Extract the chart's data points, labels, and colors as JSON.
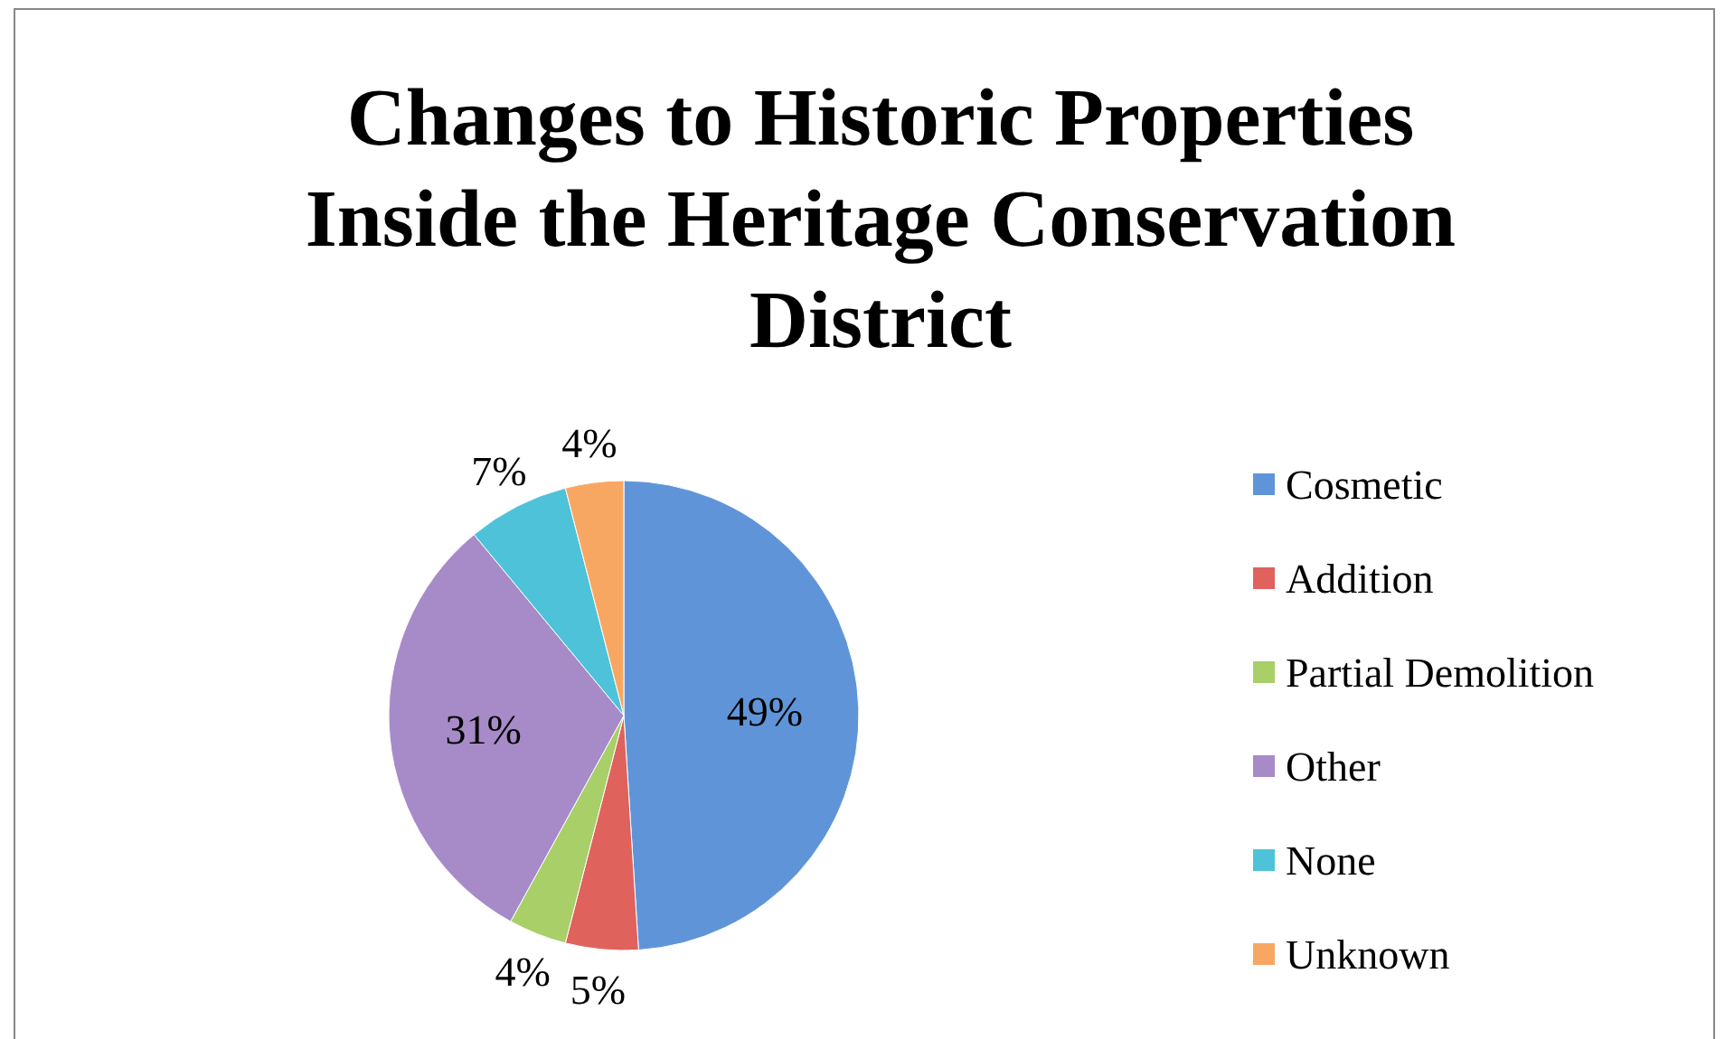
{
  "chart_data": {
    "type": "pie",
    "title": "Changes to Historic Properties Inside the Heritage Conservation District",
    "categories": [
      "Cosmetic",
      "Addition",
      "Partial Demolition",
      "Other",
      "None",
      "Unknown"
    ],
    "values": [
      49,
      5,
      4,
      31,
      7,
      4
    ],
    "colors": [
      "#5f95d8",
      "#e0625d",
      "#a8cf68",
      "#a68bc8",
      "#4ec2d8",
      "#f8a763"
    ],
    "value_labels": [
      "49%",
      "5%",
      "4%",
      "31%",
      "7%",
      "4%"
    ],
    "legend": "right"
  }
}
